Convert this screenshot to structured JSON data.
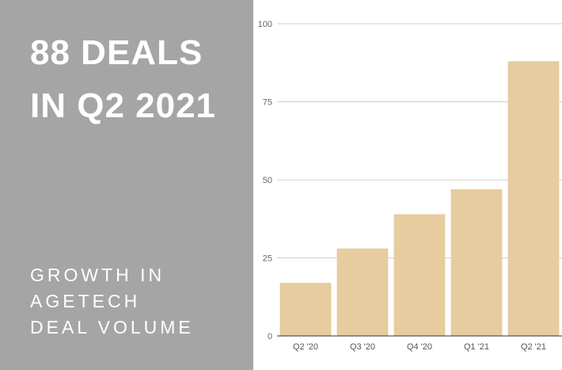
{
  "headline": {
    "line1": "88 DEALS",
    "line2": "IN Q2 2021"
  },
  "subtitle": {
    "line1": "GROWTH IN",
    "line2": "AGETECH",
    "line3": "DEAL VOLUME"
  },
  "colors": {
    "panel": "#a5a5a5",
    "bar": "#e6cc9e",
    "grid": "#d0d0d0",
    "axis": "#333333"
  },
  "chart_data": {
    "type": "bar",
    "title": "",
    "xlabel": "",
    "ylabel": "",
    "categories": [
      "Q2 '20",
      "Q3 '20",
      "Q4 '20",
      "Q1 '21",
      "Q2 '21"
    ],
    "values": [
      17,
      28,
      39,
      47,
      88
    ],
    "ylim": [
      0,
      100
    ],
    "yticks": [
      0,
      25,
      50,
      75,
      100
    ],
    "grid": true,
    "legend": "none"
  }
}
